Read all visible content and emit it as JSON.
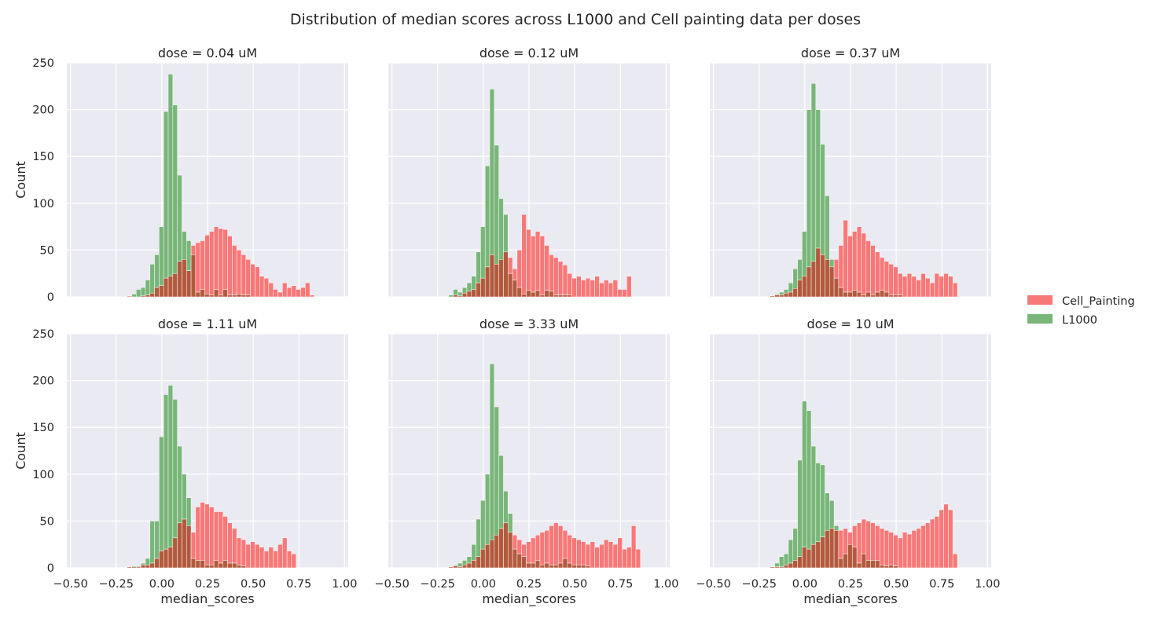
{
  "chart_data": {
    "type": "bar",
    "title": "Distribution of median scores across L1000 and Cell painting data per doses",
    "xlabel": "median_scores",
    "ylabel": "Count",
    "xlim": [
      -0.52,
      1.02
    ],
    "ylim": [
      0,
      250
    ],
    "xticks": [
      -0.5,
      -0.25,
      0.0,
      0.25,
      0.5,
      0.75,
      1.0
    ],
    "xtick_labels": [
      "−0.50",
      "−0.25",
      "0.00",
      "0.25",
      "0.50",
      "0.75",
      "1.00"
    ],
    "yticks": [
      0,
      50,
      100,
      150,
      200,
      250
    ],
    "ytick_labels": [
      "0",
      "50",
      "100",
      "150",
      "200",
      "250"
    ],
    "grid": true,
    "legend": {
      "placement": "right",
      "entries": [
        "Cell_Painting",
        "L1000"
      ]
    },
    "colors": {
      "Cell_Painting": "#f77878",
      "L1000": "#79b679",
      "overlap": "#b35a3e",
      "plot_bg": "#eaeaf2",
      "grid": "#ffffff"
    },
    "x_bin_start": -0.19,
    "bin_width": 0.025,
    "panels": [
      {
        "title": "dose = 0.04 uM",
        "cell_painting": [
          1,
          0,
          0,
          1,
          2,
          4,
          10,
          12,
          20,
          22,
          25,
          38,
          40,
          28,
          55,
          58,
          60,
          66,
          70,
          75,
          73,
          72,
          65,
          55,
          50,
          45,
          40,
          35,
          32,
          22,
          20,
          15,
          8,
          5,
          15,
          10,
          12,
          8,
          10,
          15,
          2
        ],
        "l1000": [
          0,
          3,
          8,
          10,
          18,
          35,
          45,
          75,
          198,
          238,
          205,
          130,
          70,
          60,
          45,
          5,
          8,
          3,
          2,
          8,
          2,
          8,
          2,
          2,
          3,
          2,
          2,
          0,
          0,
          0,
          0,
          0,
          0,
          0,
          0,
          0,
          0,
          0,
          0,
          0,
          0
        ]
      },
      {
        "title": "dose = 0.12 uM",
        "cell_painting": [
          0,
          2,
          1,
          4,
          6,
          8,
          15,
          20,
          32,
          45,
          35,
          40,
          48,
          42,
          30,
          50,
          88,
          72,
          65,
          70,
          65,
          55,
          45,
          42,
          38,
          34,
          25,
          20,
          22,
          18,
          20,
          18,
          22,
          15,
          18,
          15,
          18,
          8,
          8,
          22
        ],
        "l1000": [
          2,
          8,
          5,
          10,
          15,
          22,
          48,
          75,
          140,
          222,
          162,
          105,
          88,
          25,
          18,
          10,
          3,
          7,
          5,
          7,
          2,
          7,
          6,
          2,
          2,
          2,
          2,
          0,
          0,
          0,
          0,
          0,
          0,
          0,
          0,
          0,
          0,
          0,
          0,
          0
        ]
      },
      {
        "title": "dose = 0.37 uM",
        "cell_painting": [
          1,
          2,
          2,
          4,
          5,
          9,
          18,
          22,
          32,
          38,
          52,
          45,
          40,
          32,
          40,
          55,
          82,
          65,
          70,
          75,
          68,
          60,
          55,
          48,
          42,
          38,
          35,
          32,
          25,
          22,
          25,
          22,
          18,
          25,
          20,
          15,
          25,
          22,
          25,
          22,
          15
        ],
        "l1000": [
          1,
          3,
          5,
          8,
          15,
          30,
          40,
          70,
          200,
          228,
          200,
          163,
          108,
          40,
          20,
          10,
          5,
          5,
          7,
          5,
          2,
          5,
          2,
          5,
          7,
          5,
          2,
          2,
          2,
          0,
          0,
          0,
          0,
          0,
          0,
          0,
          0,
          0,
          0,
          0,
          0
        ]
      },
      {
        "title": "dose = 1.11 uM",
        "cell_painting": [
          1,
          1,
          1,
          3,
          3,
          5,
          10,
          18,
          20,
          22,
          32,
          48,
          52,
          45,
          38,
          65,
          70,
          68,
          65,
          60,
          60,
          55,
          48,
          42,
          32,
          30,
          25,
          28,
          25,
          22,
          18,
          22,
          18,
          25,
          32,
          18,
          15
        ],
        "l1000": [
          1,
          2,
          2,
          5,
          10,
          50,
          50,
          140,
          185,
          195,
          180,
          130,
          100,
          75,
          10,
          8,
          8,
          3,
          3,
          8,
          5,
          8,
          5,
          5,
          3,
          2,
          0,
          0,
          0,
          0,
          0,
          0,
          0,
          0,
          0,
          0,
          0
        ]
      },
      {
        "title": "dose = 3.33 uM",
        "cell_painting": [
          1,
          2,
          1,
          3,
          5,
          8,
          12,
          20,
          25,
          30,
          35,
          42,
          48,
          38,
          35,
          30,
          25,
          28,
          32,
          35,
          38,
          40,
          45,
          48,
          45,
          40,
          35,
          32,
          30,
          28,
          25,
          28,
          22,
          25,
          30,
          28,
          25,
          32,
          20,
          22,
          45,
          20
        ],
        "l1000": [
          1,
          3,
          5,
          8,
          12,
          25,
          52,
          72,
          100,
          218,
          172,
          120,
          82,
          58,
          20,
          15,
          12,
          5,
          5,
          8,
          3,
          5,
          3,
          3,
          5,
          10,
          5,
          3,
          3,
          3,
          2,
          0,
          0,
          0,
          0,
          0,
          0,
          0,
          0,
          0,
          0,
          0
        ]
      },
      {
        "title": "dose = 10 uM",
        "cell_painting": [
          1,
          1,
          1,
          3,
          5,
          8,
          12,
          22,
          20,
          25,
          28,
          33,
          40,
          42,
          40,
          40,
          42,
          38,
          45,
          48,
          52,
          50,
          48,
          45,
          42,
          40,
          38,
          35,
          32,
          38,
          36,
          40,
          42,
          45,
          48,
          52,
          55,
          62,
          68,
          62,
          15
        ],
        "l1000": [
          1,
          5,
          12,
          15,
          30,
          42,
          115,
          178,
          168,
          130,
          112,
          110,
          80,
          72,
          45,
          10,
          15,
          25,
          22,
          5,
          15,
          8,
          8,
          8,
          3,
          2,
          3,
          2,
          0,
          0,
          0,
          0,
          0,
          0,
          0,
          0,
          0,
          0,
          0,
          0,
          0
        ]
      }
    ]
  }
}
